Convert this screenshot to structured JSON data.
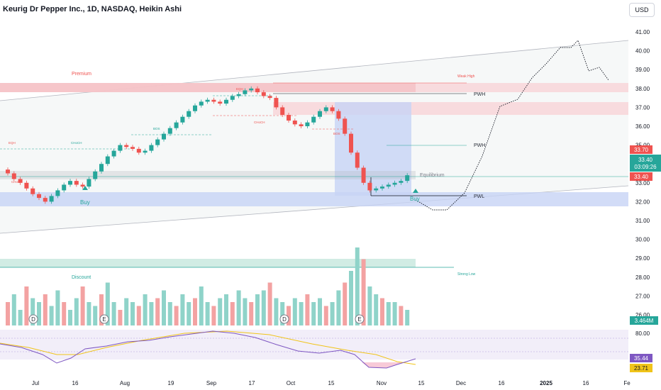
{
  "header": {
    "title": "Keurig Dr Pepper Inc., 1D, NASDAQ, Heikin Ashi",
    "currency": "USD"
  },
  "price_axis": {
    "ticks": [
      "41.00",
      "40.00",
      "39.00",
      "38.00",
      "37.00",
      "36.00",
      "35.00",
      "34.00",
      "33.00",
      "32.00",
      "31.00",
      "30.00",
      "29.00",
      "28.00",
      "27.00",
      "26.00"
    ],
    "tags": {
      "high": "33.70",
      "current": "33.40",
      "countdown": "03:09:26",
      "low": "33.40",
      "volume": "3.464M"
    }
  },
  "rsi_axis": {
    "ticks": [
      "80.00"
    ],
    "tags": {
      "rsi": "35.44",
      "ma": "23.71"
    }
  },
  "time_axis": {
    "ticks": [
      "Jul",
      "16",
      "Aug",
      "19",
      "Sep",
      "17",
      "Oct",
      "15",
      "Nov",
      "15",
      "Dec",
      "16",
      "2025",
      "16",
      "Fe"
    ]
  },
  "annotations": {
    "premium": "Premium",
    "discount": "Discount",
    "weak_high": "Weak High",
    "strong_low": "Strong Low",
    "pwh": "PWH",
    "pwl": "PWL",
    "equilibrium": "Equilibrium",
    "buy": "Buy",
    "bos": "BOS",
    "choch": "CHoCH",
    "eqh": "EQH",
    "dividend_marker": "D",
    "earnings_marker": "E"
  },
  "colors": {
    "up": "#26a69a",
    "down": "#ef5350",
    "premium_zone": "#f8d7da",
    "discount_zone": "#d1ece4",
    "projection_box": "#c7d3f5",
    "rsi_line": "#7e57c2",
    "rsi_ma": "#f0c419"
  },
  "chart_data": {
    "type": "candlestick",
    "series": [
      {
        "values": [
          33.5,
          33.2,
          33.0,
          32.7,
          32.4,
          32.2,
          32.0,
          32.3,
          32.6,
          32.9,
          33.1,
          32.9,
          32.8,
          33.2,
          33.6,
          34.0,
          34.4,
          34.7,
          35.0,
          34.9,
          34.8,
          34.6,
          34.7,
          35.0,
          35.3,
          35.6,
          35.9,
          36.2,
          36.5,
          36.8,
          37.1,
          37.3,
          37.4,
          37.3,
          37.2,
          37.4,
          37.6,
          37.7,
          37.9,
          38.0,
          37.8,
          37.6,
          37.5,
          37.0,
          36.6,
          36.3,
          36.1,
          36.0,
          36.2,
          36.5,
          36.8,
          37.0,
          36.8,
          36.4,
          35.6,
          34.6,
          33.8,
          33.0,
          32.6,
          32.7,
          32.8,
          32.9,
          33.0,
          33.1,
          33.4
        ]
      }
    ],
    "ylim": [
      25.5,
      41.5
    ]
  }
}
